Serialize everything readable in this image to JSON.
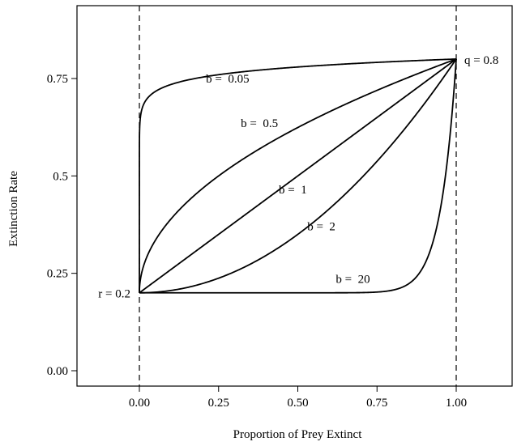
{
  "chart_data": {
    "type": "line",
    "title": "",
    "xlabel": "Proportion of Prey Extinct",
    "ylabel": "Extinction Rate",
    "xlim": [
      -0.2,
      1.2
    ],
    "ylim": [
      -0.03,
      0.9
    ],
    "x_ticks": [
      0.0,
      0.25,
      0.5,
      0.75,
      1.0
    ],
    "x_tick_labels": [
      "0.00",
      "0.25",
      "0.50",
      "0.75",
      "1.00"
    ],
    "y_ticks": [
      0.0,
      0.25,
      0.5,
      0.75
    ],
    "y_tick_labels": [
      "0.00",
      "0.25",
      "0.5",
      "0.75"
    ],
    "grid": false,
    "r": 0.2,
    "q": 0.8,
    "reference_lines": [
      {
        "x": 0.0,
        "style": "dashed"
      },
      {
        "x": 1.0,
        "style": "dashed"
      }
    ],
    "series": [
      {
        "name": "b =  0.05",
        "b": 0.05,
        "label_at": [
          0.21,
          0.74
        ]
      },
      {
        "name": "b =  0.5",
        "b": 0.5,
        "label_at": [
          0.32,
          0.625
        ]
      },
      {
        "name": "b =  1",
        "b": 1,
        "label_at": [
          0.44,
          0.455
        ]
      },
      {
        "name": "b =  2",
        "b": 2,
        "label_at": [
          0.53,
          0.36
        ]
      },
      {
        "name": "b =  20",
        "b": 20,
        "label_at": [
          0.62,
          0.225
        ]
      }
    ],
    "annotations": [
      {
        "text": "r = 0.2",
        "x": 0.0,
        "y": 0.2,
        "anchor": "left"
      },
      {
        "text": "q = 0.8",
        "x": 1.0,
        "y": 0.8,
        "anchor": "right"
      }
    ]
  }
}
